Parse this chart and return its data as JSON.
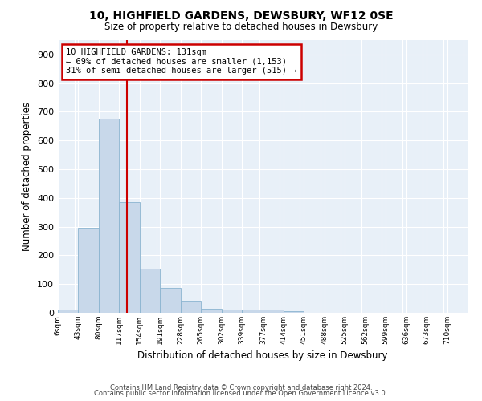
{
  "title": "10, HIGHFIELD GARDENS, DEWSBURY, WF12 0SE",
  "subtitle": "Size of property relative to detached houses in Dewsbury",
  "xlabel": "Distribution of detached houses by size in Dewsbury",
  "ylabel": "Number of detached properties",
  "bar_color": "#c8d8ea",
  "bar_edge_color": "#8ab4d0",
  "bg_color": "#e8f0f8",
  "grid_color": "#ffffff",
  "vline_x": 131,
  "vline_color": "#cc0000",
  "bin_edges": [
    6,
    43,
    80,
    117,
    154,
    191,
    228,
    265,
    302,
    339,
    377,
    414,
    451,
    488,
    525,
    562,
    599,
    636,
    673,
    710,
    747
  ],
  "bar_heights": [
    10,
    295,
    675,
    385,
    155,
    88,
    42,
    15,
    12,
    10,
    10,
    6,
    0,
    0,
    0,
    0,
    0,
    0,
    0,
    0
  ],
  "ylim": [
    0,
    950
  ],
  "yticks": [
    0,
    100,
    200,
    300,
    400,
    500,
    600,
    700,
    800,
    900
  ],
  "annotation_title": "10 HIGHFIELD GARDENS: 131sqm",
  "annotation_line1": "← 69% of detached houses are smaller (1,153)",
  "annotation_line2": "31% of semi-detached houses are larger (515) →",
  "annotation_box_color": "#ffffff",
  "annotation_box_edge": "#cc0000",
  "footer1": "Contains HM Land Registry data © Crown copyright and database right 2024.",
  "footer2": "Contains public sector information licensed under the Open Government Licence v3.0."
}
